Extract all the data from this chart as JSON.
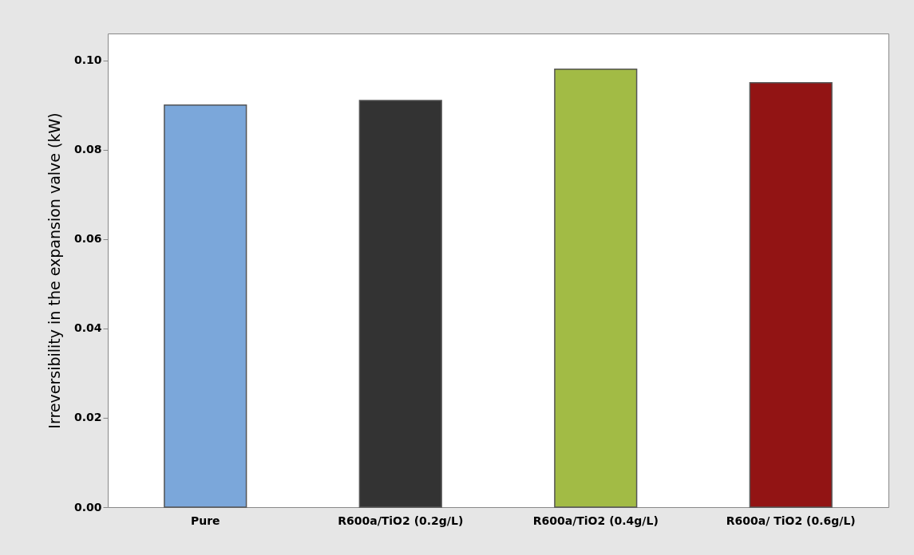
{
  "chart_data": {
    "type": "bar",
    "ylabel": "Irreversibility in the expansion valve (kW)",
    "categories": [
      "Pure",
      "R600a/TiO2 (0.2g/L)",
      "R600a/TiO2 (0.4g/L)",
      "R600a/ TiO2 (0.6g/L)"
    ],
    "values": [
      0.09,
      0.091,
      0.098,
      0.095
    ],
    "colors": [
      "#7ba7da",
      "#333333",
      "#a2bb45",
      "#921414"
    ],
    "ylim": [
      0,
      0.106
    ],
    "yticks": [
      {
        "value": 0,
        "label": "0.00"
      },
      {
        "value": 0.02,
        "label": "0.02"
      },
      {
        "value": 0.04,
        "label": "0.04"
      },
      {
        "value": 0.06,
        "label": "0.06"
      },
      {
        "value": 0.08,
        "label": "0.08"
      },
      {
        "value": 0.1,
        "label": "0.10"
      }
    ],
    "grid": false
  }
}
